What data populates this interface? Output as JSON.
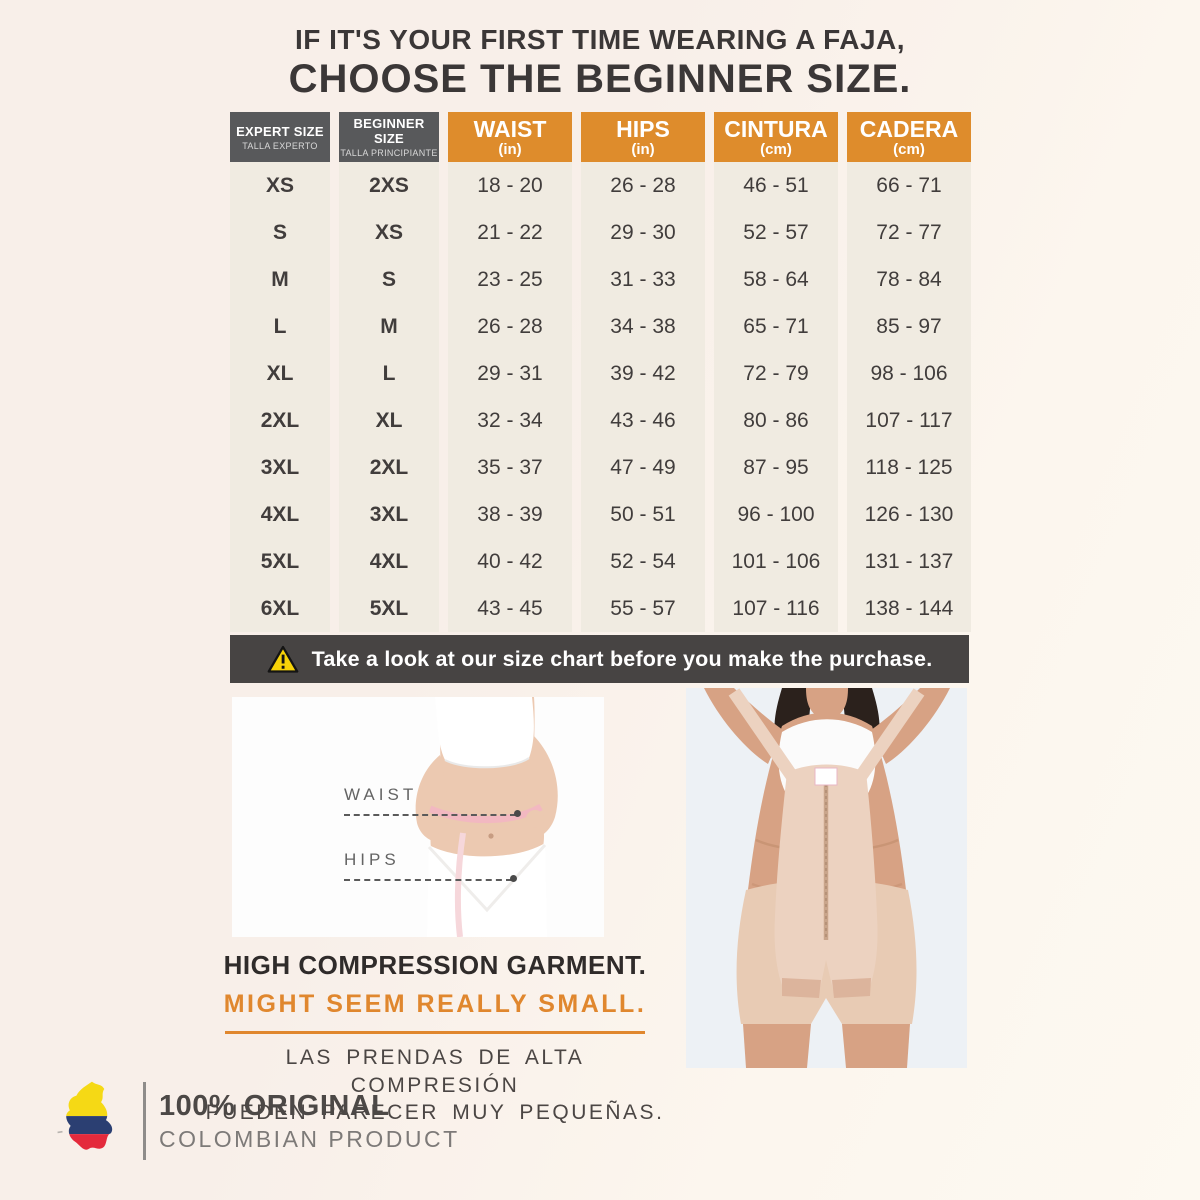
{
  "title": {
    "line1": "IF IT'S YOUR FIRST TIME WEARING A FAJA,",
    "line2": "CHOOSE THE BEGINNER SIZE."
  },
  "size_table": {
    "headers": [
      {
        "label": "EXPERT SIZE",
        "sublabel": "TALLA EXPERTO",
        "style": "dark"
      },
      {
        "label": "BEGINNER SIZE",
        "sublabel": "TALLA PRINCIPIANTE",
        "style": "dark"
      },
      {
        "label": "WAIST",
        "sublabel": "(in)",
        "style": "orange"
      },
      {
        "label": "HIPS",
        "sublabel": "(in)",
        "style": "orange"
      },
      {
        "label": "CINTURA",
        "sublabel": "(cm)",
        "style": "orange"
      },
      {
        "label": "CADERA",
        "sublabel": "(cm)",
        "style": "orange"
      }
    ],
    "rows": [
      [
        "XS",
        "2XS",
        "18 - 20",
        "26 - 28",
        "46 - 51",
        "66 - 71"
      ],
      [
        "S",
        "XS",
        "21 - 22",
        "29 - 30",
        "52 - 57",
        "72 - 77"
      ],
      [
        "M",
        "S",
        "23 - 25",
        "31 - 33",
        "58 - 64",
        "78 - 84"
      ],
      [
        "L",
        "M",
        "26 - 28",
        "34 - 38",
        "65 - 71",
        "85 - 97"
      ],
      [
        "XL",
        "L",
        "29 - 31",
        "39 - 42",
        "72 - 79",
        "98 - 106"
      ],
      [
        "2XL",
        "XL",
        "32 - 34",
        "43 - 46",
        "80 - 86",
        "107 - 117"
      ],
      [
        "3XL",
        "2XL",
        "35 - 37",
        "47 - 49",
        "87 - 95",
        "118 - 125"
      ],
      [
        "4XL",
        "3XL",
        "38 - 39",
        "50 - 51",
        "96 - 100",
        "126 - 130"
      ],
      [
        "5XL",
        "4XL",
        "40 - 42",
        "52 - 54",
        "101 - 106",
        "131 - 137"
      ],
      [
        "6XL",
        "5XL",
        "43 - 45",
        "55 - 57",
        "107 - 116",
        "138 - 144"
      ]
    ]
  },
  "warning": {
    "icon": "warning-triangle-icon",
    "text": "Take a look at our size chart before you make the purchase."
  },
  "measurement_figure": {
    "waist_label": "WAIST",
    "hips_label": "HIPS"
  },
  "compression_note": {
    "en_line1": "HIGH COMPRESSION GARMENT.",
    "en_line2": "MIGHT SEEM REALLY SMALL.",
    "es_line1": "LAS PRENDAS DE ALTA COMPRESIÓN",
    "es_line2": "PUEDEN PARECER MUY PEQUEÑAS."
  },
  "footer": {
    "icon": "colombia-map-icon",
    "line1": "100% ORIGINAL",
    "line2": "COLOMBIAN PRODUCT"
  },
  "colors": {
    "accent_orange": "#DE8C2C",
    "header_gray": "#58595B",
    "banner_charcoal": "#474443",
    "column_ivory": "#F0EBE1",
    "warning_yellow": "#F7D308",
    "title_text": "#3B3737",
    "page_background": "#F8F0E9"
  },
  "chart_data": {
    "type": "table",
    "title": "Faja size chart (choose the beginner size for first-time wearers)",
    "columns": [
      "EXPERT SIZE (TALLA EXPERTO)",
      "BEGINNER SIZE (TALLA PRINCIPIANTE)",
      "WAIST (in)",
      "HIPS (in)",
      "CINTURA (cm)",
      "CADERA (cm)"
    ],
    "rows": [
      [
        "XS",
        "2XS",
        "18 - 20",
        "26 - 28",
        "46 - 51",
        "66 - 71"
      ],
      [
        "S",
        "XS",
        "21 - 22",
        "29 - 30",
        "52 - 57",
        "72 - 77"
      ],
      [
        "M",
        "S",
        "23 - 25",
        "31 - 33",
        "58 - 64",
        "78 - 84"
      ],
      [
        "L",
        "M",
        "26 - 28",
        "34 - 38",
        "65 - 71",
        "85 - 97"
      ],
      [
        "XL",
        "L",
        "29 - 31",
        "39 - 42",
        "72 - 79",
        "98 - 106"
      ],
      [
        "2XL",
        "XL",
        "32 - 34",
        "43 - 46",
        "80 - 86",
        "107 - 117"
      ],
      [
        "3XL",
        "2XL",
        "35 - 37",
        "47 - 49",
        "87 - 95",
        "118 - 125"
      ],
      [
        "4XL",
        "3XL",
        "38 - 39",
        "50 - 51",
        "96 - 100",
        "126 - 130"
      ],
      [
        "5XL",
        "4XL",
        "40 - 42",
        "52 - 54",
        "101 - 106",
        "131 - 137"
      ],
      [
        "6XL",
        "5XL",
        "43 - 45",
        "55 - 57",
        "107 - 116",
        "138 - 144"
      ]
    ]
  }
}
